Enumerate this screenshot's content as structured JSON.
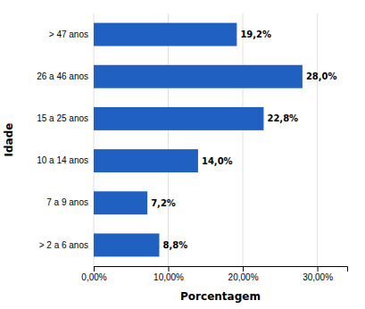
{
  "chart_data": {
    "type": "bar",
    "orientation": "horizontal",
    "categories": [
      "> 2 a 6 anos",
      "7 a 9 anos",
      "10 a 14 anos",
      "15 a 25 anos",
      "26 a 46 anos",
      "> 47 anos"
    ],
    "values": [
      8.8,
      7.2,
      14.0,
      22.8,
      28.0,
      19.2
    ],
    "value_labels": [
      "8,8%",
      "7,2%",
      "14,0%",
      "22,8%",
      "28,0%",
      "19,2%"
    ],
    "data_labels": true,
    "color": "#2060C0",
    "xlabel": "Porcentagem",
    "ylabel": "Idade",
    "xlim": [
      0,
      34
    ],
    "xticks": [
      {
        "value": 0,
        "label": "0,00%"
      },
      {
        "value": 10,
        "label": "10,00%"
      },
      {
        "value": 20,
        "label": "20,00%"
      },
      {
        "value": 30,
        "label": "30,00%"
      }
    ],
    "grid": true
  }
}
